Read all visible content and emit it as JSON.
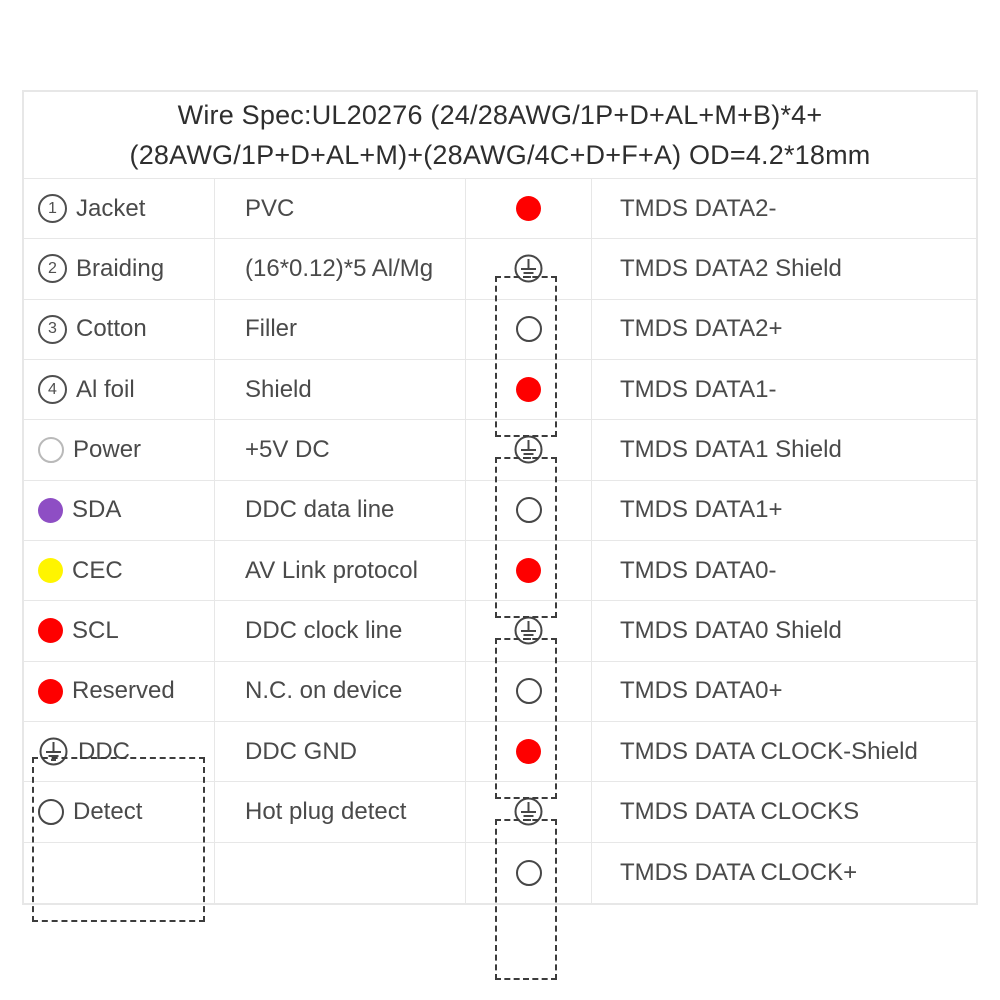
{
  "header": {
    "line1": "Wire Spec:UL20276 (24/28AWG/1P+D+AL+M+B)*4+",
    "line2": "(28AWG/1P+D+AL+M)+(28AWG/4C+D+F+A) OD=4.2*18mm"
  },
  "colors": {
    "red": "#fe0000",
    "purple": "#8e4ec4",
    "yellow": "#fff500",
    "outline_dark": "#474747",
    "outline_light": "#b9b9b9"
  },
  "rows": [
    {
      "icon": "circled-number",
      "num": "1",
      "label": "Jacket",
      "desc": "PVC",
      "pin_icon": "red-dot",
      "signal": "TMDS DATA2-"
    },
    {
      "icon": "circled-number",
      "num": "2",
      "label": "Braiding",
      "desc": "(16*0.12)*5 Al/Mg",
      "pin_icon": "ground",
      "signal": "TMDS DATA2 Shield"
    },
    {
      "icon": "circled-number",
      "num": "3",
      "label": "Cotton",
      "desc": "Filler",
      "pin_icon": "open-circle",
      "signal": "TMDS DATA2+"
    },
    {
      "icon": "circled-number",
      "num": "4",
      "label": "Al foil",
      "desc": "Shield",
      "pin_icon": "red-dot",
      "signal": "TMDS DATA1-"
    },
    {
      "icon": "open-circle-light",
      "label": "Power",
      "desc": "+5V DC",
      "pin_icon": "ground",
      "signal": "TMDS DATA1 Shield"
    },
    {
      "icon": "purple-dot",
      "label": "SDA",
      "desc": "DDC data line",
      "pin_icon": "open-circle",
      "signal": "TMDS DATA1+"
    },
    {
      "icon": "yellow-dot",
      "label": "CEC",
      "desc": "AV Link protocol",
      "pin_icon": "red-dot",
      "signal": "TMDS DATA0-"
    },
    {
      "icon": "red-dot",
      "label": "SCL",
      "desc": "DDC clock line",
      "pin_icon": "ground",
      "signal": "TMDS DATA0 Shield"
    },
    {
      "icon": "red-dot",
      "label": "Reserved",
      "desc": "N.C. on device",
      "pin_icon": "open-circle",
      "signal": "TMDS DATA0+"
    },
    {
      "icon": "ground",
      "label": "DDC",
      "desc": "DDC GND",
      "pin_icon": "red-dot",
      "signal": "TMDS DATA CLOCK-Shield"
    },
    {
      "icon": "open-circle",
      "label": "Detect",
      "desc": "Hot plug detect",
      "pin_icon": "ground",
      "signal": "TMDS DATA CLOCKS"
    },
    {
      "icon": "none",
      "label": "",
      "desc": "",
      "pin_icon": "open-circle",
      "signal": "TMDS DATA CLOCK+"
    }
  ]
}
